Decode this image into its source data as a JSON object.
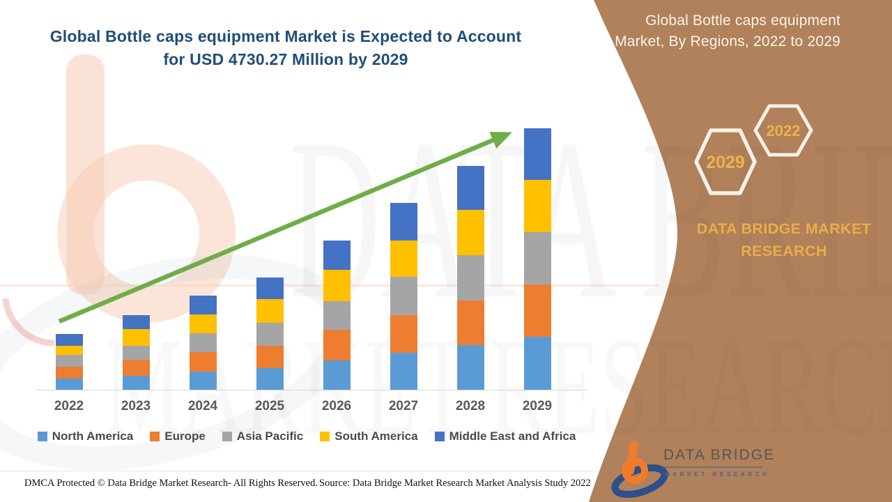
{
  "title": {
    "line1": "Global Bottle caps equipment Market is Expected to Account",
    "line2": "for USD 4730.27 Million by 2029",
    "color": "#1F4E79"
  },
  "side_panel": {
    "background_color": "#B0815A",
    "accent_gold": "#E9AE49",
    "heading_line1": "Global Bottle caps equipment",
    "heading_line2": "Market, By Regions, 2022 to 2029",
    "hexagons": [
      {
        "label": "2029"
      },
      {
        "label": "2022"
      }
    ],
    "brand_line1": "DATA BRIDGE MARKET",
    "brand_line2": "RESEARCH"
  },
  "watermarks": {
    "row1": "DATA BRIDGE",
    "row2": "MARKET RESEARCH"
  },
  "logo": {
    "name": "DATA BRIDGE",
    "subtitle": "MARKET RESEARCH"
  },
  "footer": {
    "left": "DMCA Protected © Data Bridge Market Research- All Rights Reserved.",
    "source": "Source: Data Bridge Market Research Market Analysis Study 2022"
  },
  "chart_data": {
    "type": "bar",
    "stacked": true,
    "title": "Global Bottle caps equipment Market, By Regions, 2022 to 2029",
    "unit": "USD Million (values estimated from bar heights; 2029 total = 4730.27 from title)",
    "categories": [
      "2022",
      "2023",
      "2024",
      "2025",
      "2026",
      "2027",
      "2028",
      "2029"
    ],
    "series": [
      {
        "name": "North America",
        "color": "#5B9BD5",
        "values": [
          202,
          252,
          328,
          391,
          530,
          669,
          807,
          959
        ]
      },
      {
        "name": "Europe",
        "color": "#ED7D31",
        "values": [
          214,
          290,
          353,
          404,
          555,
          681,
          807,
          946
        ]
      },
      {
        "name": "Asia Pacific",
        "color": "#A5A5A5",
        "values": [
          214,
          252,
          341,
          416,
          517,
          694,
          820,
          946
        ]
      },
      {
        "name": "South America",
        "color": "#FFC000",
        "values": [
          164,
          303,
          341,
          429,
          568,
          656,
          820,
          946
        ]
      },
      {
        "name": "Middle East and Africa",
        "color": "#4472C4",
        "values": [
          214,
          252,
          341,
          391,
          530,
          681,
          795,
          933
        ]
      }
    ],
    "totals_estimated": [
      1008,
      1349,
      1704,
      2031,
      2700,
      3381,
      4049,
      4730.27
    ],
    "ylim": [
      0,
      4750
    ],
    "xlabel": "",
    "ylabel": "",
    "gridlines": false,
    "y_axis_shown": false,
    "legend_position": "bottom",
    "trend_arrow": true,
    "trend_arrow_color": "#6FAD47"
  }
}
